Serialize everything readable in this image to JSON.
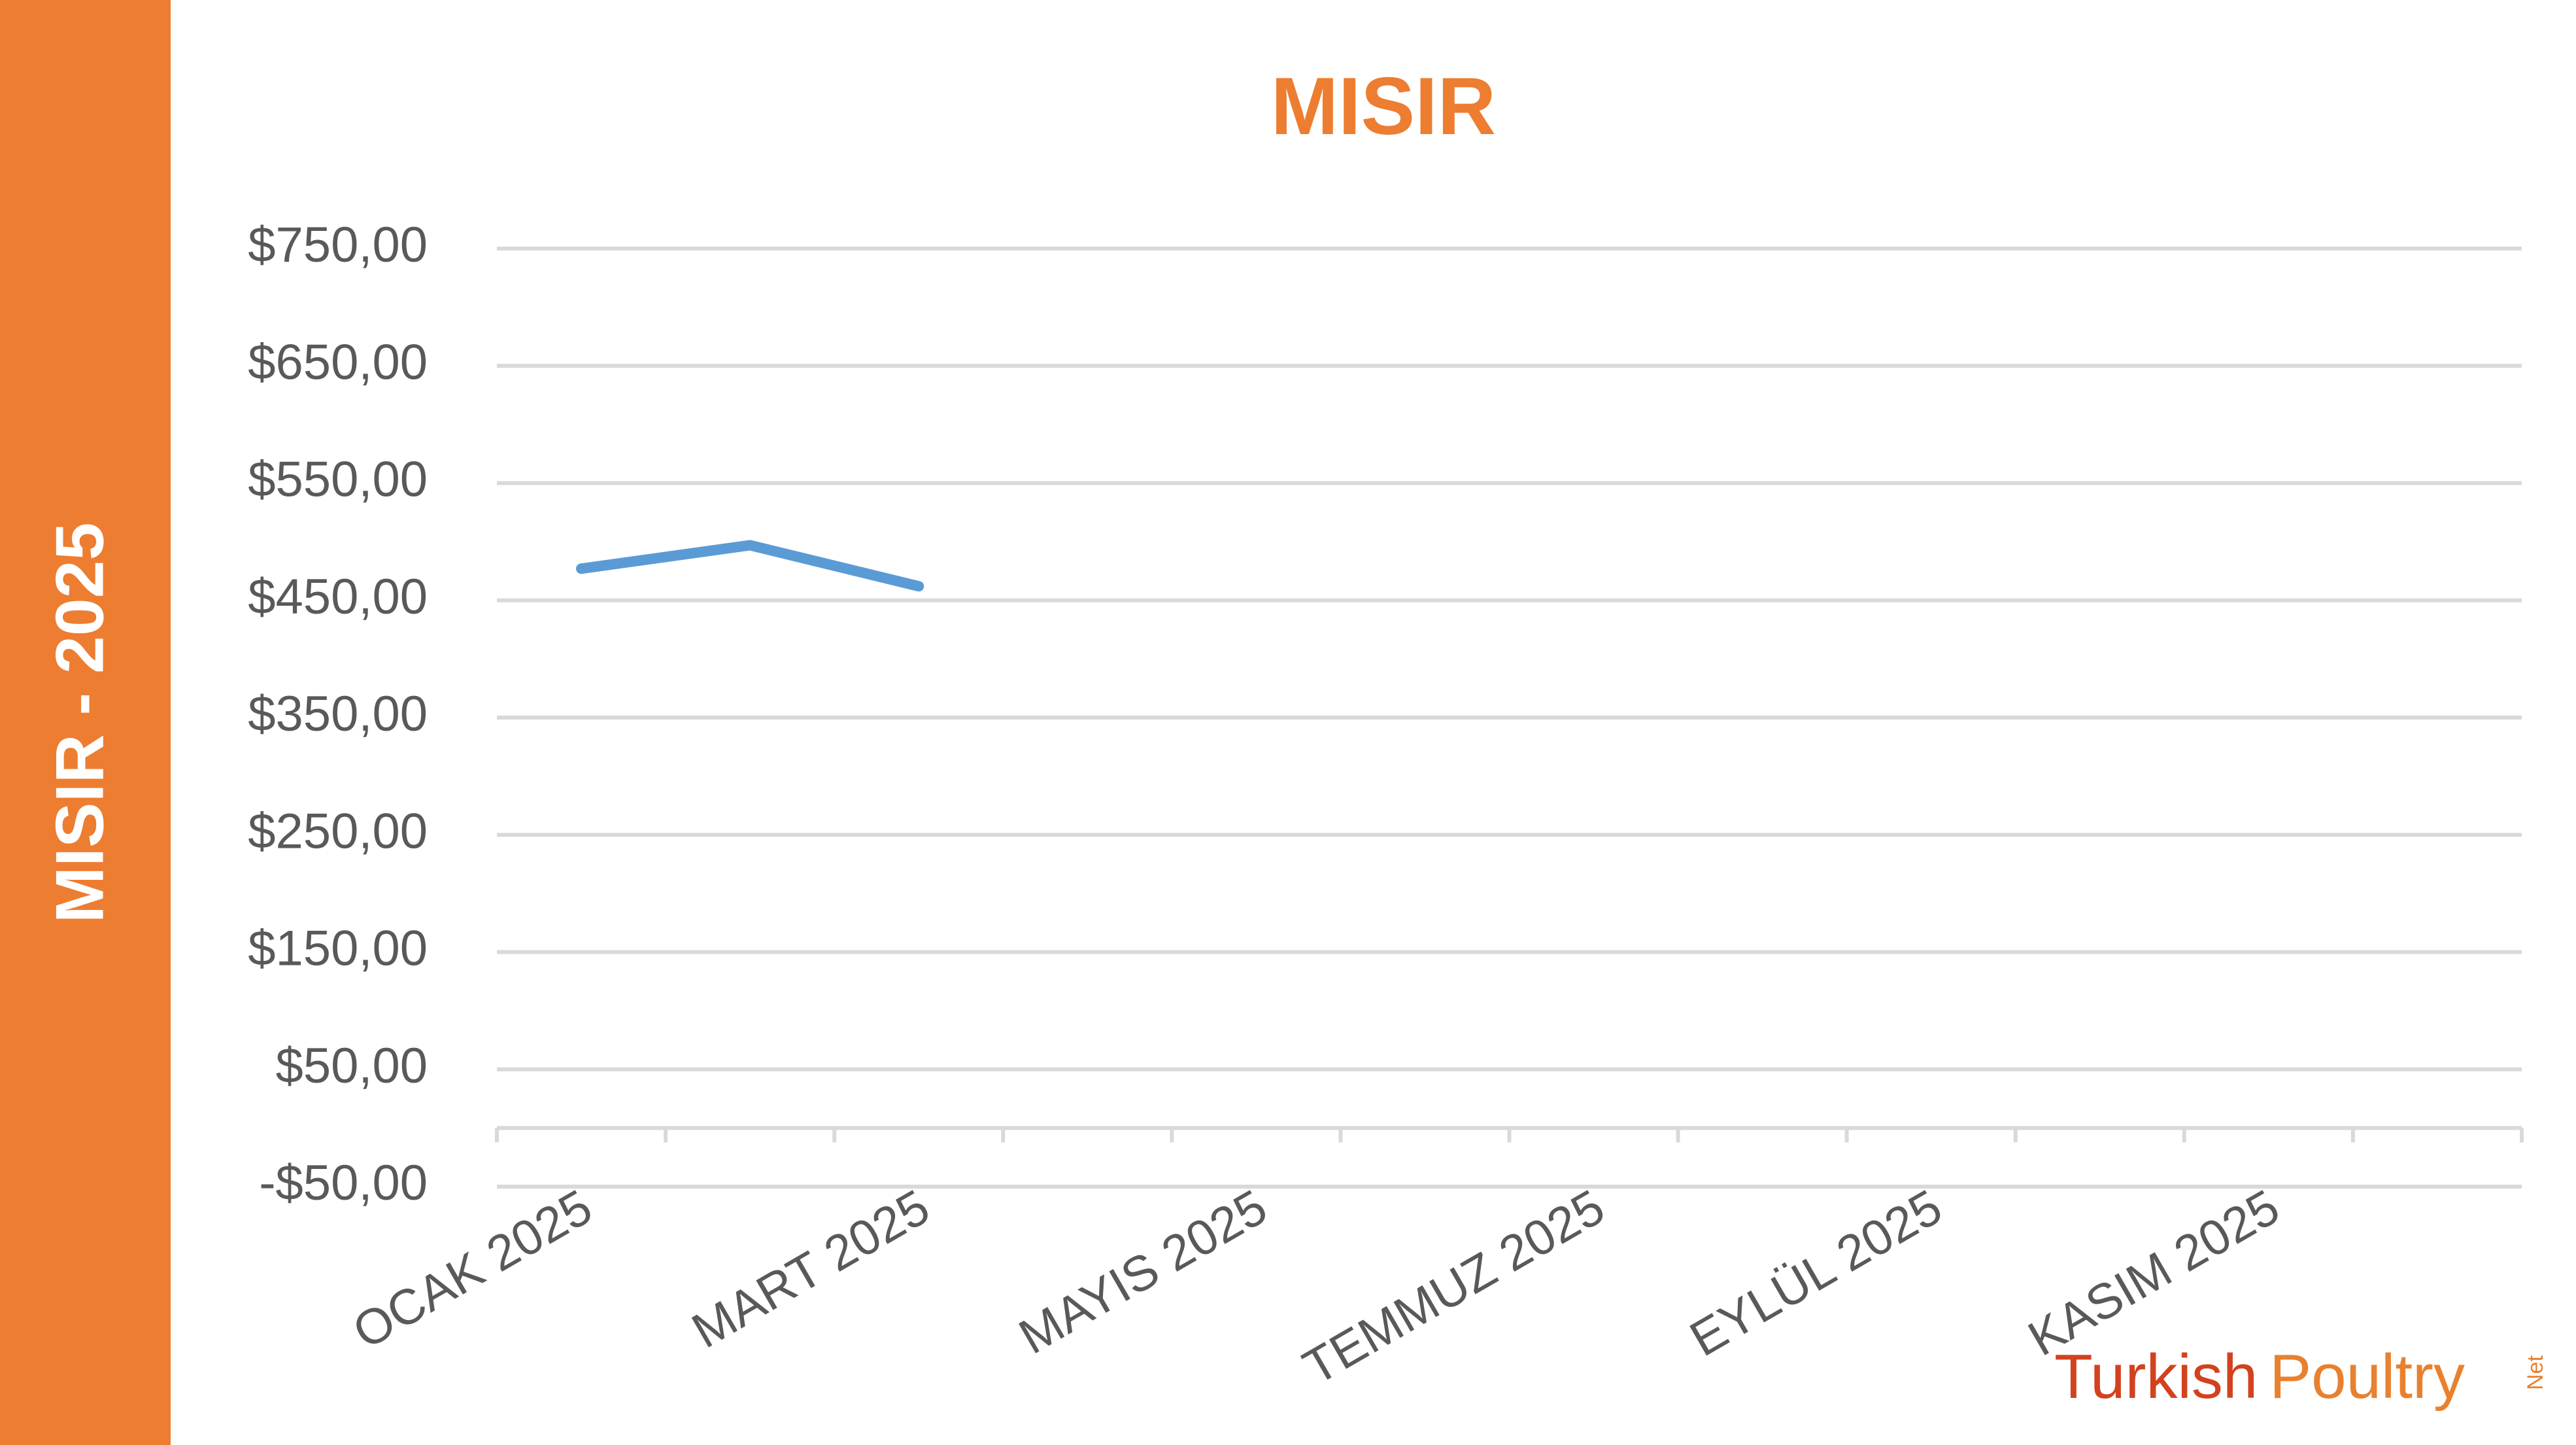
{
  "side_label": "MISIR - 2025",
  "chart_data": {
    "type": "line",
    "title": "MISIR",
    "categories": [
      "OCAK 2025",
      null,
      "MART 2025",
      null,
      "MAYIS 2025",
      null,
      "TEMMUZ 2025",
      null,
      "EYLÜL 2025",
      null,
      "KASIM 2025",
      null
    ],
    "series": [
      {
        "name": "MISIR",
        "color": "#5b9bd5",
        "values": [
          477,
          497,
          462,
          null,
          null,
          null,
          null,
          null,
          null,
          null,
          null,
          null
        ]
      }
    ],
    "ylim": [
      -50,
      750
    ],
    "yticks": [
      {
        "value": -50,
        "label": "-$50,00"
      },
      {
        "value": 50,
        "label": "$50,00"
      },
      {
        "value": 150,
        "label": "$150,00"
      },
      {
        "value": 250,
        "label": "$250,00"
      },
      {
        "value": 350,
        "label": "$350,00"
      },
      {
        "value": 450,
        "label": "$450,00"
      },
      {
        "value": 550,
        "label": "$550,00"
      },
      {
        "value": 650,
        "label": "$650,00"
      },
      {
        "value": 750,
        "label": "$750,00"
      }
    ],
    "grid": true
  },
  "logo": {
    "word1": "Turkish",
    "word2": "Poultry",
    "word3": "Net"
  }
}
